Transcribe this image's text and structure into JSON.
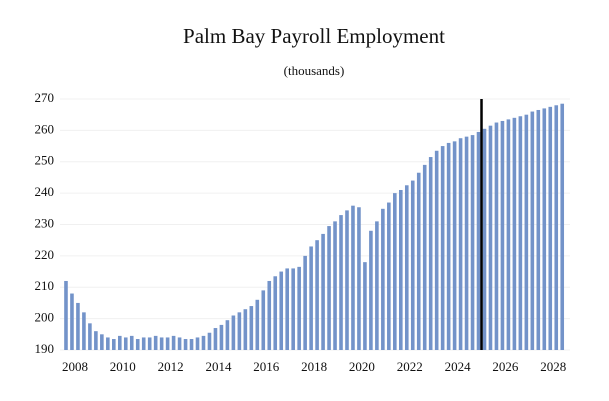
{
  "chart_data": {
    "type": "bar",
    "title": "Palm Bay Payroll Employment",
    "subtitle": "(thousands)",
    "x": [
      2007.625,
      2007.875,
      2008.125,
      2008.375,
      2008.625,
      2008.875,
      2009.125,
      2009.375,
      2009.625,
      2009.875,
      2010.125,
      2010.375,
      2010.625,
      2010.875,
      2011.125,
      2011.375,
      2011.625,
      2011.875,
      2012.125,
      2012.375,
      2012.625,
      2012.875,
      2013.125,
      2013.375,
      2013.625,
      2013.875,
      2014.125,
      2014.375,
      2014.625,
      2014.875,
      2015.125,
      2015.375,
      2015.625,
      2015.875,
      2016.125,
      2016.375,
      2016.625,
      2016.875,
      2017.125,
      2017.375,
      2017.625,
      2017.875,
      2018.125,
      2018.375,
      2018.625,
      2018.875,
      2019.125,
      2019.375,
      2019.625,
      2019.875,
      2020.125,
      2020.375,
      2020.625,
      2020.875,
      2021.125,
      2021.375,
      2021.625,
      2021.875,
      2022.125,
      2022.375,
      2022.625,
      2022.875,
      2023.125,
      2023.375,
      2023.625,
      2023.875,
      2024.125,
      2024.375,
      2024.625,
      2024.875,
      2025.125,
      2025.375,
      2025.625,
      2025.875,
      2026.125,
      2026.375,
      2026.625,
      2026.875,
      2027.125,
      2027.375,
      2027.625,
      2027.875,
      2028.125,
      2028.375
    ],
    "values": [
      212,
      208,
      205,
      202,
      198.5,
      196,
      195,
      194,
      193.5,
      194.5,
      194,
      194.5,
      193.5,
      194,
      194,
      194.5,
      194,
      194,
      194.5,
      194,
      193.5,
      193.5,
      194,
      194.5,
      195.5,
      197,
      198,
      199.5,
      201,
      202,
      203,
      204,
      206,
      209,
      212,
      213.5,
      215,
      216,
      216,
      216.5,
      220,
      223,
      225,
      227,
      229.5,
      231,
      233,
      234.5,
      236,
      235.5,
      218,
      228,
      231,
      235,
      237,
      240,
      241,
      242.5,
      244,
      246.5,
      249,
      251.5,
      253.5,
      255,
      256,
      256.5,
      257.5,
      258,
      258.5,
      259.5,
      260.5,
      261.5,
      262.5,
      263,
      263.5,
      264,
      264.5,
      265,
      266,
      266.5,
      267,
      267.5,
      268,
      268.5
    ],
    "color": "#7393c9",
    "xlim": [
      2007.375,
      2028.7
    ],
    "xticks": [
      2008,
      2010,
      2012,
      2014,
      2016,
      2018,
      2020,
      2022,
      2024,
      2026,
      2028
    ],
    "ylim": [
      190,
      270
    ],
    "yticks": [
      190,
      200,
      210,
      220,
      230,
      240,
      250,
      260,
      270
    ],
    "grid": true,
    "vline": 2025
  }
}
